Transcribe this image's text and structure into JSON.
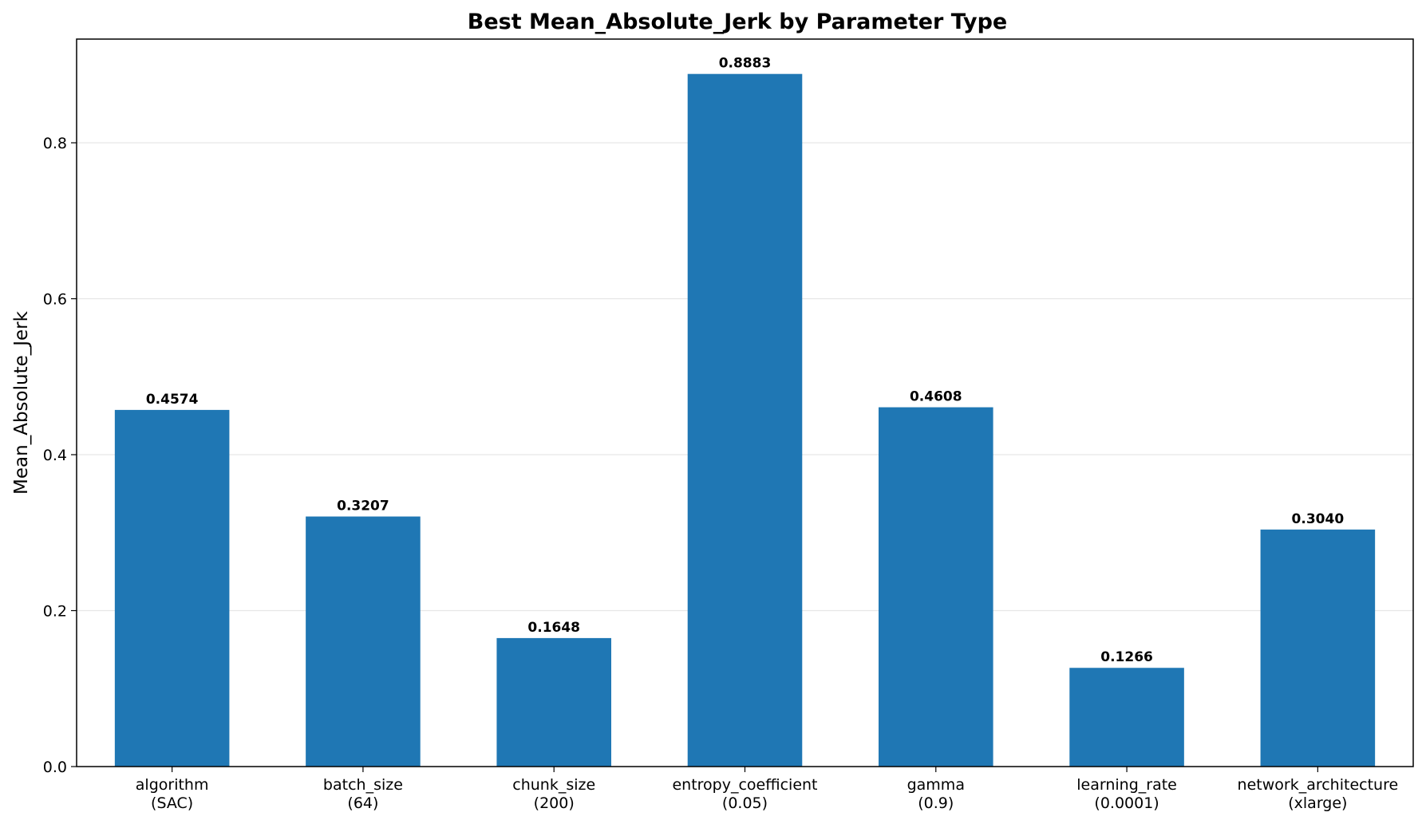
{
  "chart_data": {
    "type": "bar",
    "title": "Best Mean_Absolute_Jerk by Parameter Type",
    "xlabel": "",
    "ylabel": "Mean_Absolute_Jerk",
    "categories": [
      [
        "algorithm",
        "(SAC)"
      ],
      [
        "batch_size",
        "(64)"
      ],
      [
        "chunk_size",
        "(200)"
      ],
      [
        "entropy_coefficient",
        "(0.05)"
      ],
      [
        "gamma",
        "(0.9)"
      ],
      [
        "learning_rate",
        "(0.0001)"
      ],
      [
        "network_architecture",
        "(xlarge)"
      ]
    ],
    "values": [
      0.4574,
      0.3207,
      0.1648,
      0.8883,
      0.4608,
      0.1266,
      0.304
    ],
    "data_labels": [
      "0.4574",
      "0.3207",
      "0.1648",
      "0.8883",
      "0.4608",
      "0.1266",
      "0.3040"
    ],
    "yticks": [
      0.0,
      0.2,
      0.4,
      0.6,
      0.8
    ],
    "ytick_labels": [
      "0.0",
      "0.2",
      "0.4",
      "0.6",
      "0.8"
    ],
    "ylim": [
      0,
      0.933
    ],
    "grid": "y-axis horizontal lines",
    "legend": "none",
    "bar_color": "#1f77b4",
    "grid_color": "#e6e6e6"
  }
}
